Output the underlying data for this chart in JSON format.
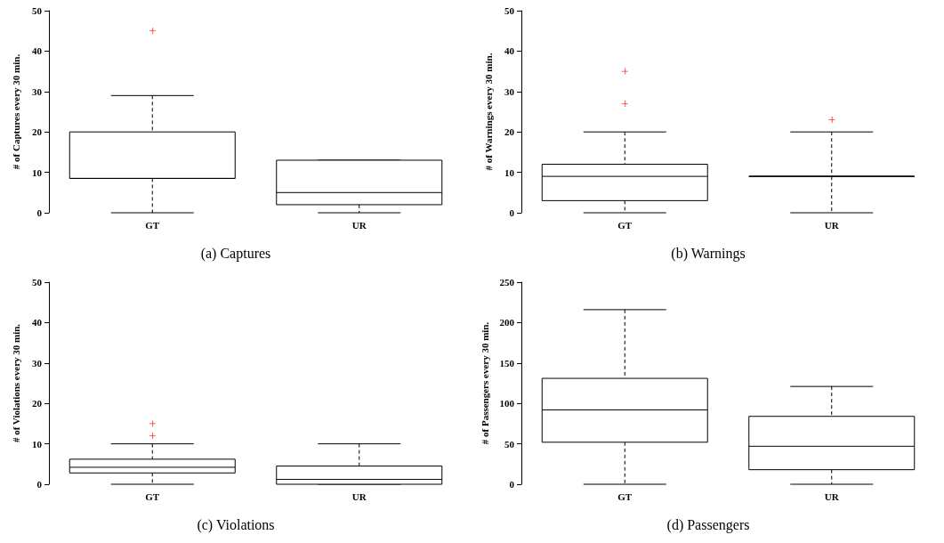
{
  "chart_data": [
    {
      "type": "box",
      "title": "(a) Captures",
      "ylabel": "# of Captures every 30 min.",
      "categories": [
        "GT",
        "UR"
      ],
      "ylim": [
        0,
        50
      ],
      "yticks": [
        0,
        10,
        20,
        30,
        40,
        50
      ],
      "boxes": [
        {
          "low": 0,
          "q1": 8.5,
          "median": 8.5,
          "q3": 20,
          "high": 29,
          "outliers": [
            45
          ]
        },
        {
          "low": 0,
          "q1": 2,
          "median": 5,
          "q3": 13,
          "high": 13
        }
      ]
    },
    {
      "type": "box",
      "title": "(b) Warnings",
      "ylabel": "# of Warnings every 30 min.",
      "categories": [
        "GT",
        "UR"
      ],
      "ylim": [
        0,
        50
      ],
      "yticks": [
        0,
        10,
        20,
        30,
        40,
        50
      ],
      "boxes": [
        {
          "low": 0,
          "q1": 3,
          "median": 9,
          "q3": 12,
          "high": 20,
          "outliers": [
            35,
            27
          ]
        },
        {
          "low": 0,
          "q1": 9,
          "median": 9,
          "q3": 9,
          "high": 20,
          "outliers": [
            23
          ]
        }
      ]
    },
    {
      "type": "box",
      "title": "(c) Violations",
      "ylabel": "# of Violations every 30 min.",
      "categories": [
        "GT",
        "UR"
      ],
      "ylim": [
        0,
        50
      ],
      "yticks": [
        0,
        10,
        20,
        30,
        40,
        50
      ],
      "boxes": [
        {
          "low": 0,
          "q1": 2.8,
          "median": 4.2,
          "q3": 6.2,
          "high": 10,
          "outliers": [
            15,
            12
          ]
        },
        {
          "low": 0,
          "q1": 0,
          "median": 1.2,
          "q3": 4.5,
          "high": 10
        }
      ]
    },
    {
      "type": "box",
      "title": "(d) Passengers",
      "ylabel": "# of Passengers every 30 min.",
      "categories": [
        "GT",
        "UR"
      ],
      "ylim": [
        0,
        250
      ],
      "yticks": [
        0,
        50,
        100,
        150,
        200,
        250
      ],
      "boxes": [
        {
          "low": 0,
          "q1": 52,
          "median": 92,
          "q3": 131,
          "high": 216
        },
        {
          "low": 0,
          "q1": 18,
          "median": 47,
          "q3": 84,
          "high": 121
        }
      ]
    }
  ]
}
